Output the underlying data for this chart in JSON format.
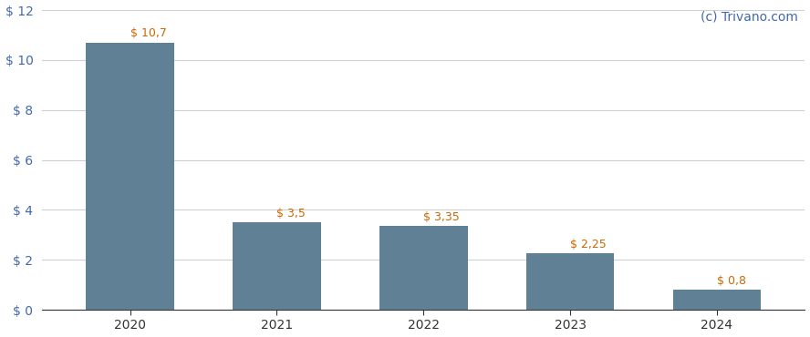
{
  "categories": [
    "2020",
    "2021",
    "2022",
    "2023",
    "2024"
  ],
  "values": [
    10.7,
    3.5,
    3.35,
    2.25,
    0.8
  ],
  "labels": [
    "$ 10,7",
    "$ 3,5",
    "$ 3,35",
    "$ 2,25",
    "$ 0,8"
  ],
  "bar_color": "#5f8095",
  "background_color": "#ffffff",
  "grid_color": "#d0d0d0",
  "ylim": [
    0,
    12
  ],
  "yticks": [
    0,
    2,
    4,
    6,
    8,
    10,
    12
  ],
  "watermark": "(c) Trivano.com",
  "watermark_color": "#4169aa",
  "label_color": "#cc6600",
  "ytick_color": "#4169aa",
  "xtick_color": "#333333",
  "label_fontsize": 9.0,
  "tick_fontsize": 10,
  "watermark_fontsize": 10,
  "bar_width": 0.6
}
